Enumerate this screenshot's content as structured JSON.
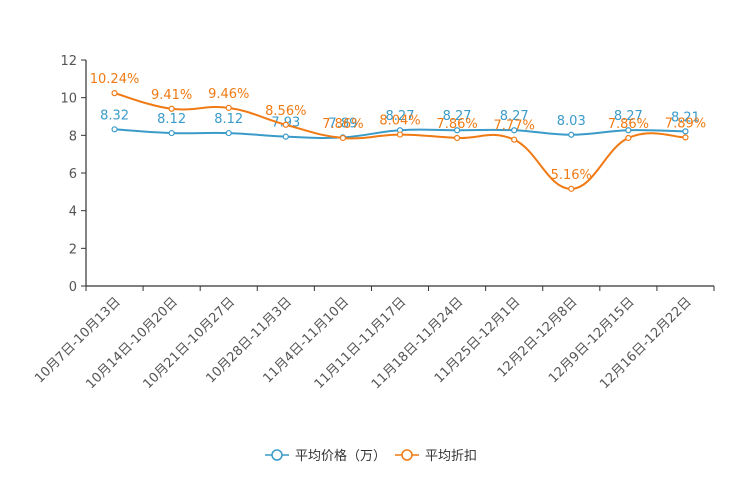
{
  "chart_data": {
    "type": "line",
    "title": "",
    "xlabel": "",
    "ylabel": "",
    "ylim": [
      0,
      12
    ],
    "yticks": [
      0,
      2,
      4,
      6,
      8,
      10,
      12
    ],
    "grid": false,
    "legend_position": "bottom-center",
    "categories": [
      "10月7日-10月13日",
      "10月14日-10月20日",
      "10月21日-10月27日",
      "10月28日-11月3日",
      "11月4日-11月10日",
      "11月11日-11月17日",
      "11月18日-11月24日",
      "11月25日-12月1日",
      "12月2日-12月8日",
      "12月9日-12月15日",
      "12月16日-12月22日"
    ],
    "series": [
      {
        "name": "平均价格（万）",
        "color": "#3a9bc9",
        "values": [
          8.32,
          8.12,
          8.12,
          7.93,
          7.89,
          8.27,
          8.27,
          8.27,
          8.03,
          8.27,
          8.21
        ],
        "labels": [
          "8.32",
          "8.12",
          "8.12",
          "7.93",
          "7.89",
          "8.27",
          "8.27",
          "8.27",
          "8.03",
          "8.27",
          "8.21"
        ]
      },
      {
        "name": "平均折扣",
        "color": "#f07a14",
        "values": [
          10.24,
          9.41,
          9.46,
          8.56,
          7.86,
          8.04,
          7.86,
          7.77,
          5.16,
          7.86,
          7.89
        ],
        "labels": [
          "10.24%",
          "9.41%",
          "9.46%",
          "8.56%",
          "7.86%",
          "8.04%",
          "7.86%",
          "7.77%",
          "5.16%",
          "7.86%",
          "7.89%"
        ]
      }
    ]
  }
}
